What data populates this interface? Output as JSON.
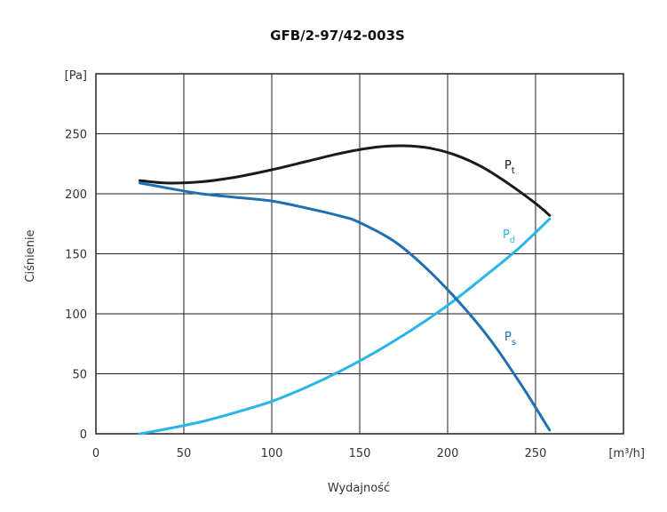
{
  "chart_data": {
    "type": "line",
    "title": "GFB/2-97/42-003S",
    "xlabel": "Wydajność",
    "ylabel": "Ciśnienie",
    "x_unit": "[m³/h]",
    "y_unit": "[Pa]",
    "xlim": [
      0,
      300
    ],
    "ylim": [
      0,
      300
    ],
    "x_ticks": [
      0,
      50,
      100,
      150,
      200,
      250
    ],
    "y_ticks": [
      0,
      50,
      100,
      150,
      200,
      250
    ],
    "grid": true,
    "series": [
      {
        "label_main": "P",
        "label_sub": "t",
        "color": "#1a1a1a",
        "x": [
          25,
          40,
          60,
          80,
          100,
          120,
          140,
          160,
          175,
          190,
          205,
          220,
          235,
          250,
          258
        ],
        "y": [
          211,
          209,
          210,
          214,
          220,
          227,
          234,
          239,
          240,
          238,
          232,
          222,
          208,
          192,
          182
        ]
      },
      {
        "label_main": "P",
        "label_sub": "d",
        "color": "#29b5e8",
        "x": [
          25,
          40,
          60,
          80,
          100,
          120,
          140,
          160,
          180,
          200,
          220,
          240,
          258
        ],
        "y": [
          0,
          4,
          10,
          18,
          27,
          39,
          53,
          69,
          87,
          107,
          130,
          154,
          179
        ]
      },
      {
        "label_main": "P",
        "label_sub": "s",
        "color": "#1f6fb2",
        "x": [
          25,
          40,
          60,
          80,
          100,
          120,
          140,
          150,
          170,
          190,
          210,
          225,
          240,
          250,
          258
        ],
        "y": [
          209,
          205,
          200,
          197,
          194,
          188,
          181,
          176,
          160,
          135,
          104,
          77,
          45,
          22,
          3
        ]
      }
    ]
  }
}
